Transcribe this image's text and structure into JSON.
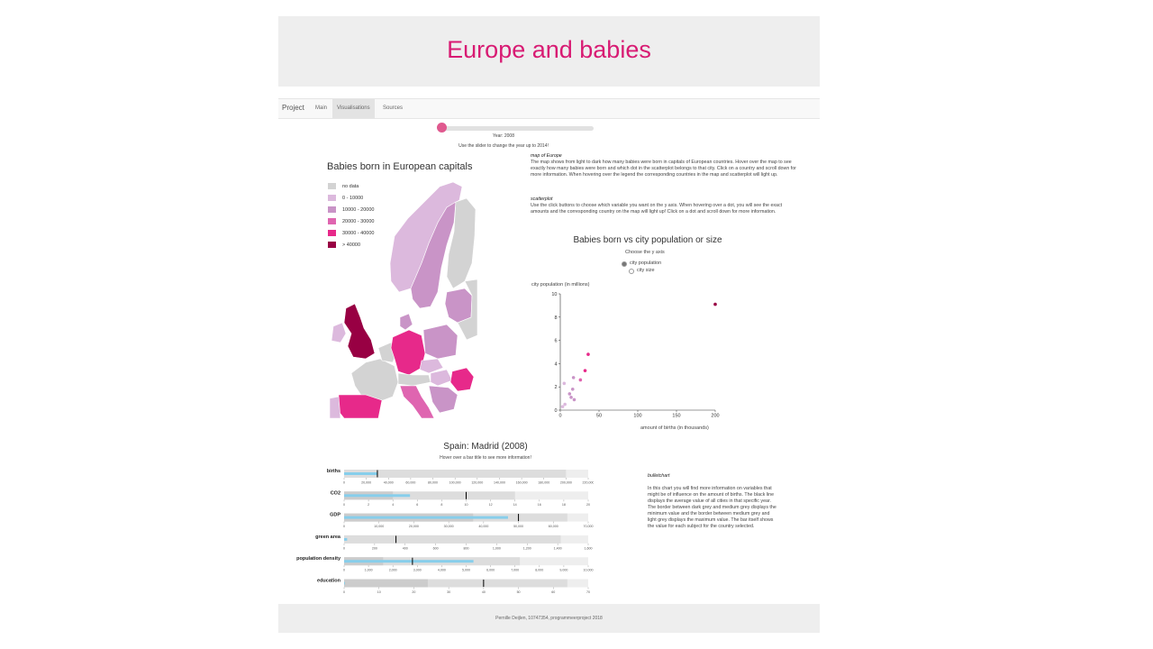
{
  "page": {
    "title": "Europe and babies"
  },
  "nav": {
    "brand": "Project",
    "tabs": [
      "Main",
      "Visualisations",
      "Sources"
    ],
    "active_tab": "Visualisations"
  },
  "slider": {
    "year_label": "Year: 2008",
    "hint": "Use the slider to change the year up to 2014!",
    "value_fraction": 0.0
  },
  "map": {
    "title": "Babies born in European capitals",
    "legend": [
      {
        "label": "no data",
        "color": "#d3d3d3"
      },
      {
        "label": "0 - 10000",
        "color": "#dcb9dd"
      },
      {
        "label": "10000 - 20000",
        "color": "#c994c7"
      },
      {
        "label": "20000 - 30000",
        "color": "#df65b0"
      },
      {
        "label": "30000 - 40000",
        "color": "#e7298a"
      },
      {
        "label": "> 40000",
        "color": "#980043"
      }
    ]
  },
  "descriptions": {
    "map_heading": "map of Europe",
    "map_text": "The map shows from light to dark how many babies were born in capitals of European countries. Hover over the map to see exactly how many babies were born and which dot in the scatterplot belongs to that city. Click on a country and scroll down for more information. When hovering over the legend the corresponding countries in the map and scatterplot will light up.",
    "scatter_heading": "scatterplot",
    "scatter_text": "Use the click buttons to choose which variable you want on the y axis. When hovering over a dot, you will see the exact amounts and the corresponding country on the map will light up! Click on a dot and scroll down for more information.",
    "bullet_heading": "bulletchart",
    "bullet_text": "In this chart you will find more information on variables that might be of influence on the amount of births. The black line displays the average value of all cities in that specific year. The border between dark grey and medium grey displays the minimum value and the border between medium grey and light grey displays the maximum value. The bar itself shows the value for each subject for the country selected."
  },
  "scatter": {
    "title": "Babies born vs city population or size",
    "choose_label": "Choose the y axis",
    "options": [
      "city population",
      "city size"
    ],
    "selected": "city population",
    "ylabel": "city population (in millions)",
    "xlabel": "amount of births (in thousands)"
  },
  "bullet": {
    "title": "Spain: Madrid (2008)",
    "hint": "Hover over a bar title to see more information!"
  },
  "footer": {
    "text": "Pernille Deijlen, 10747354, programmeerproject 2018"
  },
  "chart_data": [
    {
      "type": "scatter",
      "title": "Babies born vs city population or size",
      "xlabel": "amount of births (in thousands)",
      "ylabel": "city population (in millions)",
      "xlim": [
        0,
        200
      ],
      "ylim": [
        0,
        10
      ],
      "xticks": [
        "0",
        "50",
        "100",
        "150",
        "200"
      ],
      "yticks": [
        "0",
        "2",
        "4",
        "6",
        "8",
        "10"
      ],
      "points": [
        {
          "x": 3,
          "y": 0.3,
          "color": "#dcb9dd"
        },
        {
          "x": 6,
          "y": 0.5,
          "color": "#dcb9dd"
        },
        {
          "x": 5,
          "y": 2.3,
          "color": "#dcb9dd"
        },
        {
          "x": 12,
          "y": 1.4,
          "color": "#c994c7"
        },
        {
          "x": 14,
          "y": 1.1,
          "color": "#c994c7"
        },
        {
          "x": 16,
          "y": 1.8,
          "color": "#c994c7"
        },
        {
          "x": 17,
          "y": 2.8,
          "color": "#c994c7"
        },
        {
          "x": 18,
          "y": 0.9,
          "color": "#c994c7"
        },
        {
          "x": 26,
          "y": 2.6,
          "color": "#df65b0"
        },
        {
          "x": 32,
          "y": 3.4,
          "color": "#e7298a"
        },
        {
          "x": 36,
          "y": 4.8,
          "color": "#e7298a"
        },
        {
          "x": 200,
          "y": 9.1,
          "color": "#980043"
        }
      ]
    },
    {
      "type": "bar",
      "title": "Spain: Madrid (2008)",
      "rows": [
        {
          "name": "births",
          "value": 30000,
          "average": 30000,
          "min": 0,
          "max": 200000,
          "ticks": [
            "0",
            "20,000",
            "40,000",
            "60,000",
            "80,000",
            "100,000",
            "120,000",
            "140,000",
            "160,000",
            "180,000",
            "200,000",
            "220,000"
          ],
          "domain": [
            0,
            220000
          ]
        },
        {
          "name": "CO2",
          "value": 5.4,
          "average": 10,
          "min": 4,
          "max": 14,
          "ticks": [
            "0",
            "2",
            "4",
            "6",
            "8",
            "10",
            "12",
            "14",
            "16",
            "18",
            "20"
          ],
          "domain": [
            0,
            20
          ]
        },
        {
          "name": "GDP",
          "value": 47000,
          "average": 50000,
          "min": 37000,
          "max": 64000,
          "ticks": [
            "0",
            "10,000",
            "20,000",
            "30,000",
            "40,000",
            "50,000",
            "60,000",
            "70,000"
          ],
          "domain": [
            0,
            70000
          ]
        },
        {
          "name": "green area",
          "value": 20,
          "average": 340,
          "min": 0,
          "max": 1420,
          "ticks": [
            "0",
            "200",
            "400",
            "600",
            "800",
            "1,000",
            "1,200",
            "1,400",
            "1,600"
          ],
          "domain": [
            0,
            1600
          ]
        },
        {
          "name": "population density",
          "value": 5300,
          "average": 2800,
          "min": 1600,
          "max": 7200,
          "ticks": [
            "0",
            "1,000",
            "2,000",
            "3,000",
            "4,000",
            "5,000",
            "6,000",
            "7,000",
            "8,000",
            "9,000",
            "10,000"
          ],
          "domain": [
            0,
            10000
          ]
        },
        {
          "name": "education",
          "value": 0,
          "average": 40,
          "min": 24,
          "max": 64,
          "ticks": [
            "0",
            "10",
            "20",
            "30",
            "40",
            "50",
            "60",
            "70"
          ],
          "domain": [
            0,
            70
          ]
        }
      ]
    }
  ]
}
